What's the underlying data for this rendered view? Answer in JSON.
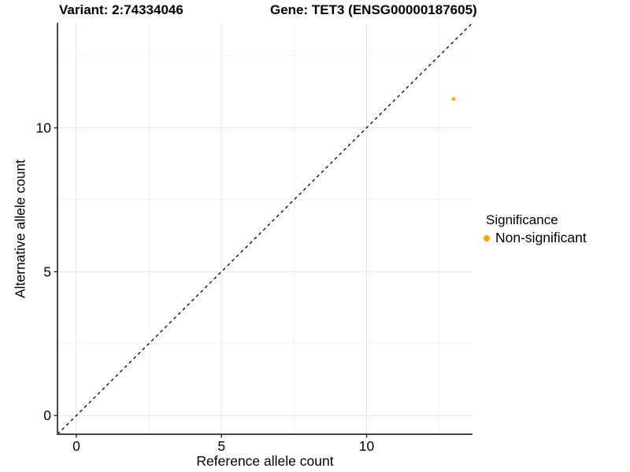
{
  "titles": {
    "variant": "Variant: 2:74334046",
    "gene": "Gene: TET3 (ENSG00000187605)"
  },
  "legend": {
    "title": "Significance",
    "items": [
      {
        "label": "Non-significant",
        "color": "#FFA500"
      }
    ]
  },
  "chart_data": {
    "type": "scatter",
    "title_left": "Variant: 2:74334046",
    "title_right": "Gene: TET3 (ENSG00000187605)",
    "xlabel": "Reference allele count",
    "ylabel": "Alternative allele count",
    "xlim": [
      -0.65,
      13.65
    ],
    "ylim": [
      -0.65,
      13.65
    ],
    "x_ticks": [
      0,
      5,
      10
    ],
    "y_ticks": [
      0,
      5,
      10
    ],
    "x_minor_ticks": [
      2.5,
      7.5,
      12.5
    ],
    "y_minor_ticks": [
      2.5,
      7.5,
      12.5
    ],
    "grid": true,
    "legend_position": "right",
    "series": [
      {
        "name": "Non-significant",
        "color": "#FFA500",
        "points": [
          {
            "x": 13,
            "y": 11
          }
        ]
      }
    ],
    "reference_line": {
      "kind": "identity",
      "style": "dashed",
      "color": "#000000"
    }
  },
  "colors": {
    "grid_major": "#E4E4E4",
    "grid_minor": "#F2F2F2",
    "axis_line": "#474747",
    "tick_mark": "#333333",
    "tick_text": "#000000",
    "background": "#FFFFFF"
  }
}
